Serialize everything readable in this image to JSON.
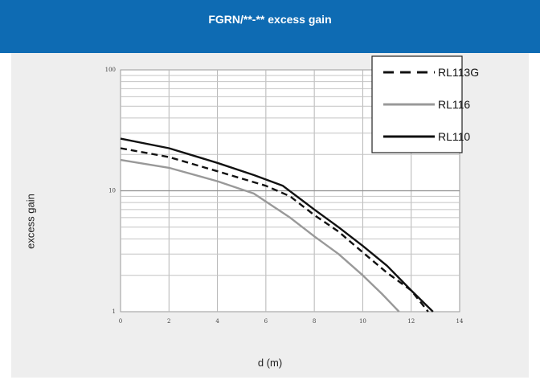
{
  "header": {
    "title": "FGRN/**-** excess gain"
  },
  "chart_data": {
    "type": "line",
    "title": "FGRN/**-** excess gain",
    "xlabel": "d (m)",
    "ylabel": "excess gain",
    "xlim": [
      0,
      14
    ],
    "ylim": [
      1,
      100
    ],
    "yscale": "log",
    "grid": true,
    "legend_position": "top-right",
    "x_ticks": [
      0,
      2,
      4,
      6,
      8,
      10,
      12,
      14
    ],
    "y_ticks": [
      1,
      10,
      100
    ],
    "series": [
      {
        "name": "RL113G",
        "style": "dashed",
        "color": "#111111",
        "points": [
          [
            0,
            22.5
          ],
          [
            2,
            19
          ],
          [
            4,
            14.5
          ],
          [
            6,
            11
          ],
          [
            7,
            9
          ],
          [
            8,
            6.3
          ],
          [
            9,
            4.6
          ],
          [
            10,
            3.1
          ],
          [
            11,
            2.1
          ],
          [
            12,
            1.5
          ],
          [
            12.7,
            1
          ]
        ]
      },
      {
        "name": "RL116",
        "style": "solid",
        "color": "#999999",
        "points": [
          [
            0,
            18
          ],
          [
            2,
            15.5
          ],
          [
            4,
            12
          ],
          [
            5.5,
            9.5
          ],
          [
            7,
            6
          ],
          [
            8,
            4.2
          ],
          [
            9,
            3
          ],
          [
            10,
            2
          ],
          [
            10.8,
            1.4
          ],
          [
            11.5,
            1
          ]
        ]
      },
      {
        "name": "RL110",
        "style": "solid",
        "color": "#111111",
        "points": [
          [
            0,
            27
          ],
          [
            2,
            22.5
          ],
          [
            4,
            17
          ],
          [
            5.5,
            13.5
          ],
          [
            6.7,
            11
          ],
          [
            8,
            7
          ],
          [
            9,
            5
          ],
          [
            10,
            3.5
          ],
          [
            11,
            2.4
          ],
          [
            12,
            1.5
          ],
          [
            12.9,
            1
          ]
        ]
      }
    ]
  }
}
